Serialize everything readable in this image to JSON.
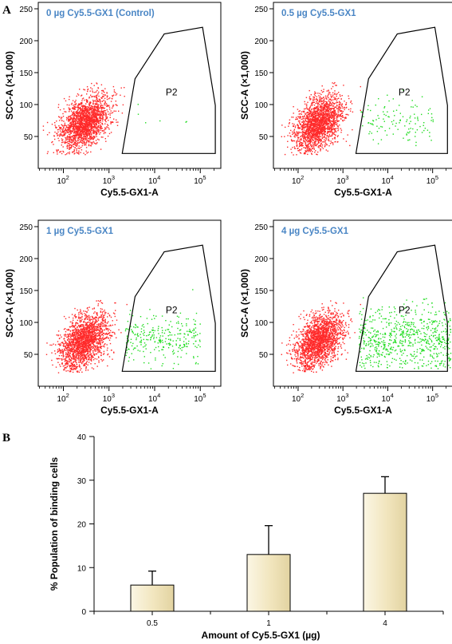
{
  "panel_labels": {
    "a": "A",
    "b": "B"
  },
  "flow": {
    "xlabel": "Cy5.5-GX1-A",
    "ylabel": "SCC-A (×1,000)",
    "gate_label": "P2",
    "y_ticks": [
      "50",
      "100",
      "150",
      "200",
      "250"
    ],
    "x_ticks": [
      {
        "base": "10",
        "exp": "2",
        "log": 2
      },
      {
        "base": "10",
        "exp": "3",
        "log": 3
      },
      {
        "base": "10",
        "exp": "4",
        "log": 4
      },
      {
        "base": "10",
        "exp": "5",
        "log": 5
      }
    ],
    "colors": {
      "negative": "#ff2a2a",
      "positive": "#22dd22",
      "title": "#4a86c5"
    },
    "panels": [
      {
        "title": "0 µg Cy5.5-GX1 (Control)",
        "dose_ug": 0,
        "positive_fraction": 0.003
      },
      {
        "title": "0.5 µg Cy5.5-GX1",
        "dose_ug": 0.5,
        "positive_fraction": 0.06
      },
      {
        "title": "1 µg Cy5.5-GX1",
        "dose_ug": 1,
        "positive_fraction": 0.13
      },
      {
        "title": "4 µg Cy5.5-GX1",
        "dose_ug": 4,
        "positive_fraction": 0.27
      }
    ]
  },
  "chart_data": {
    "type": "bar",
    "categories": [
      "0.5",
      "1",
      "4"
    ],
    "values": [
      6,
      13,
      27
    ],
    "error": [
      3.2,
      6.6,
      3.8
    ],
    "xlabel": "Amount of Cy5.5-GX1 (µg)",
    "ylabel": "% Population of binding cells",
    "ylim": [
      0,
      40
    ],
    "yticks": [
      "0",
      "10",
      "20",
      "30",
      "40"
    ],
    "grid": false,
    "bar_color": "#f3e9c6"
  }
}
